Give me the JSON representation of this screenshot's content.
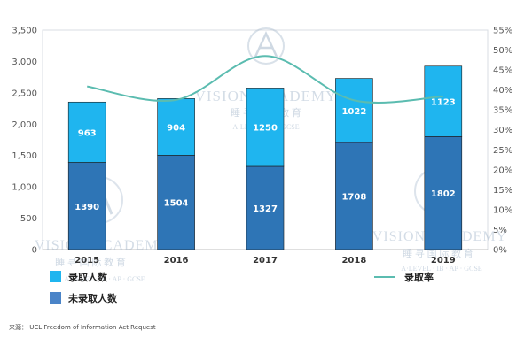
{
  "chart_data": {
    "type": "bar",
    "categories": [
      "2015",
      "2016",
      "2017",
      "2018",
      "2019"
    ],
    "series": [
      {
        "name": "未录取人数",
        "values": [
          1390,
          1504,
          1327,
          1708,
          1802
        ],
        "color": "#2e75b6",
        "axis": "left",
        "stack": "total"
      },
      {
        "name": "录取人数",
        "values": [
          963,
          904,
          1250,
          1022,
          1123
        ],
        "color": "#1fb5ef",
        "axis": "left",
        "stack": "total"
      },
      {
        "name": "录取率",
        "type": "line",
        "values": [
          40.9,
          37.5,
          48.5,
          37.4,
          38.4
        ],
        "color": "#5bbcb0",
        "axis": "right",
        "smooth": true
      }
    ],
    "left_axis": {
      "ylim": [
        0,
        3500
      ],
      "ticks": [
        "0",
        "500",
        "1,000",
        "1,500",
        "2,000",
        "2,500",
        "3,000",
        "3,500"
      ]
    },
    "right_axis": {
      "ylim": [
        0,
        55
      ],
      "ticks": [
        "0%",
        "5%",
        "10%",
        "15%",
        "20%",
        "25%",
        "30%",
        "35%",
        "40%",
        "45%",
        "50%",
        "55%"
      ]
    },
    "grid": false,
    "legend": {
      "placement": "bottom",
      "items": [
        {
          "label": "录取人数",
          "color": "#1fb5ef",
          "kind": "square"
        },
        {
          "label": "未录取人数",
          "color": "#2e75b6",
          "kind": "square"
        },
        {
          "label": "录取率",
          "color": "#5bbcb0",
          "kind": "line"
        }
      ]
    },
    "source": "来源：  UCL Freedom of Information Act Request"
  },
  "watermark": {
    "brand": "VISION ACADEMY",
    "chinese": "睡 寻 国 际 教 育",
    "subtitle_center": "A·LEVEL · IB · GCSE",
    "subtitle_left": "A·LEVEL · IB · AP · GCSE",
    "subtitle_right": "A·LEVEL · IB · AP · GCSE",
    "logo_letter": "A"
  }
}
